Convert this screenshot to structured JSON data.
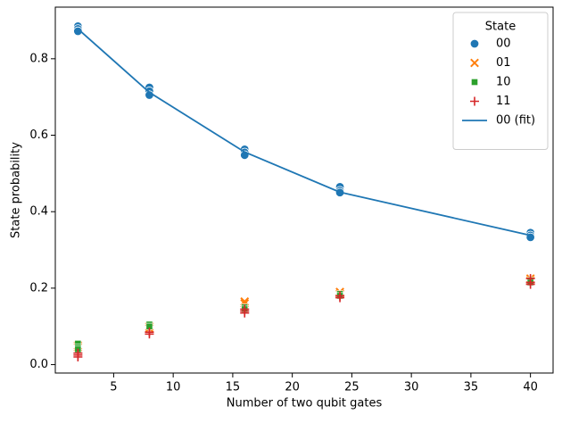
{
  "chart_data": {
    "type": "scatter",
    "xlabel": "Number of two qubit gates",
    "ylabel": "State probability",
    "xlim": [
      0.1,
      41.9
    ],
    "ylim": [
      -0.022,
      0.935
    ],
    "xticks": [
      5,
      10,
      15,
      20,
      25,
      30,
      35,
      40
    ],
    "yticks": [
      {
        "value": 0,
        "label": "0.0"
      },
      0.2,
      0.4,
      0.6,
      0.8
    ],
    "legend_title": "State",
    "legend": "upper right",
    "series": [
      {
        "name": "00",
        "color": "#1f77b4",
        "marker": "circle",
        "x": [
          2,
          2,
          2,
          8,
          8,
          8,
          16,
          16,
          16,
          24,
          24,
          24,
          40,
          40,
          40
        ],
        "y": [
          0.885,
          0.878,
          0.872,
          0.725,
          0.715,
          0.705,
          0.563,
          0.555,
          0.548,
          0.465,
          0.455,
          0.45,
          0.345,
          0.338,
          0.333
        ]
      },
      {
        "name": "01",
        "color": "#ff7f0e",
        "marker": "x",
        "x": [
          2,
          2,
          8,
          8,
          16,
          16,
          24,
          24,
          40,
          40
        ],
        "y": [
          0.05,
          0.045,
          0.1,
          0.095,
          0.165,
          0.16,
          0.19,
          0.185,
          0.225,
          0.22
        ]
      },
      {
        "name": "10",
        "color": "#2ca02c",
        "marker": "square",
        "x": [
          2,
          2,
          2,
          8,
          8,
          16,
          16,
          24,
          24,
          40,
          40
        ],
        "y": [
          0.055,
          0.045,
          0.04,
          0.105,
          0.1,
          0.15,
          0.145,
          0.185,
          0.18,
          0.22,
          0.215
        ]
      },
      {
        "name": "11",
        "color": "#d62728",
        "marker": "plus",
        "x": [
          2,
          2,
          2,
          8,
          8,
          16,
          16,
          16,
          24,
          24,
          40,
          40,
          40
        ],
        "y": [
          0.03,
          0.025,
          0.02,
          0.085,
          0.08,
          0.145,
          0.14,
          0.135,
          0.18,
          0.175,
          0.225,
          0.215,
          0.21
        ]
      },
      {
        "name": "00 (fit)",
        "color": "#1f77b4",
        "type": "line",
        "x": [
          2,
          8,
          16,
          24,
          40
        ],
        "y": [
          0.878,
          0.712,
          0.556,
          0.451,
          0.338
        ]
      }
    ]
  }
}
